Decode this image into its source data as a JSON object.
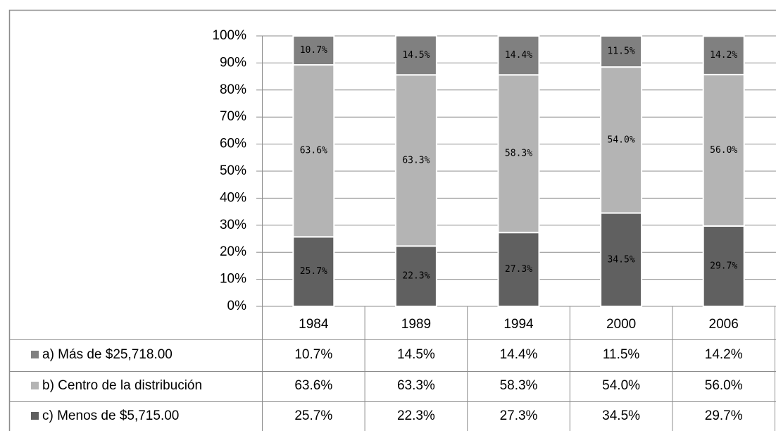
{
  "chart_data": {
    "type": "stacked-bar",
    "categories": [
      "1984",
      "1989",
      "1994",
      "2000",
      "2006"
    ],
    "series": [
      {
        "name": "a) Más de $25,718.00",
        "color": "#808080",
        "values": [
          10.7,
          14.5,
          14.4,
          11.5,
          14.2
        ],
        "value_labels": [
          "10.7%",
          "14.5%",
          "14.4%",
          "11.5%",
          "14.2%"
        ]
      },
      {
        "name": "b) Centro de la distribución",
        "color": "#b4b4b4",
        "values": [
          63.6,
          63.3,
          58.3,
          54.0,
          56.0
        ],
        "value_labels": [
          "63.6%",
          "63.3%",
          "58.3%",
          "54.0%",
          "56.0%"
        ]
      },
      {
        "name": "c) Menos de $5,715.00",
        "color": "#606060",
        "values": [
          25.7,
          22.3,
          27.3,
          34.5,
          29.7
        ],
        "value_labels": [
          "25.7%",
          "22.3%",
          "27.3%",
          "34.5%",
          "29.7%"
        ]
      }
    ],
    "ylim": [
      0,
      100
    ],
    "yticks": [
      {
        "value": 0,
        "label": "0%"
      },
      {
        "value": 10,
        "label": "10%"
      },
      {
        "value": 20,
        "label": "20%"
      },
      {
        "value": 30,
        "label": "30%"
      },
      {
        "value": 40,
        "label": "40%"
      },
      {
        "value": 50,
        "label": "50%"
      },
      {
        "value": 60,
        "label": "60%"
      },
      {
        "value": 70,
        "label": "70%"
      },
      {
        "value": 80,
        "label": "80%"
      },
      {
        "value": 90,
        "label": "90%"
      },
      {
        "value": 100,
        "label": "100%"
      }
    ],
    "grid": true,
    "legend": "table"
  }
}
